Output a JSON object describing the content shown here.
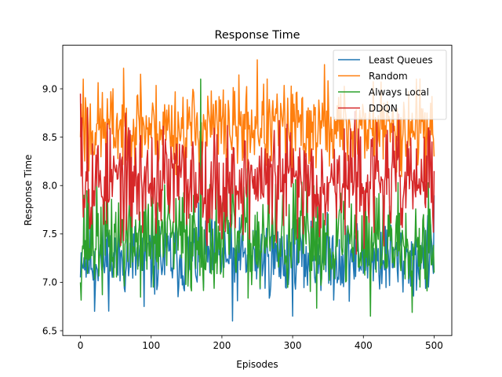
{
  "chart_data": {
    "type": "line",
    "title": "Response Time",
    "xlabel": "Episodes",
    "ylabel": "Response Time",
    "xlim": [
      -25,
      525
    ],
    "ylim": [
      6.45,
      9.45
    ],
    "xticks": [
      0,
      100,
      200,
      300,
      400,
      500
    ],
    "xtick_labels": [
      "0",
      "100",
      "200",
      "300",
      "400",
      "500"
    ],
    "yticks": [
      6.5,
      7.0,
      7.5,
      8.0,
      8.5,
      9.0
    ],
    "ytick_labels": [
      "6.5",
      "7.0",
      "7.5",
      "8.0",
      "8.5",
      "9.0"
    ],
    "grid": false,
    "legend_position": "top-right",
    "n_points": 501,
    "series": [
      {
        "name": "Least Queues",
        "color": "#1f77b4",
        "mean": 7.25,
        "amplitude": 0.2,
        "seed": 11,
        "anchors": [
          [
            0,
            7.05
          ],
          [
            2,
            7.2
          ],
          [
            20,
            6.7
          ],
          [
            90,
            6.75
          ],
          [
            215,
            6.6
          ],
          [
            300,
            6.65
          ],
          [
            410,
            7.0
          ],
          [
            500,
            7.9
          ]
        ]
      },
      {
        "name": "Random",
        "color": "#ff7f0e",
        "mean": 8.6,
        "amplitude": 0.22,
        "seed": 23,
        "anchors": [
          [
            0,
            8.5
          ],
          [
            4,
            9.1
          ],
          [
            12,
            8.15
          ],
          [
            85,
            9.15
          ],
          [
            250,
            9.3
          ],
          [
            345,
            9.25
          ],
          [
            475,
            9.1
          ],
          [
            500,
            8.3
          ]
        ]
      },
      {
        "name": "Always Local",
        "color": "#2ca02c",
        "mean": 7.45,
        "amplitude": 0.28,
        "seed": 37,
        "anchors": [
          [
            0,
            7.0
          ],
          [
            5,
            7.9
          ],
          [
            170,
            9.1
          ],
          [
            410,
            6.65
          ],
          [
            495,
            7.6
          ],
          [
            500,
            7.1
          ]
        ]
      },
      {
        "name": "DDQN",
        "color": "#d62728",
        "mean": 8.05,
        "amplitude": 0.28,
        "seed": 53,
        "anchors": [
          [
            0,
            8.95
          ],
          [
            2,
            8.7
          ],
          [
            10,
            8.8
          ],
          [
            200,
            7.45
          ],
          [
            500,
            8.15
          ]
        ]
      }
    ]
  }
}
